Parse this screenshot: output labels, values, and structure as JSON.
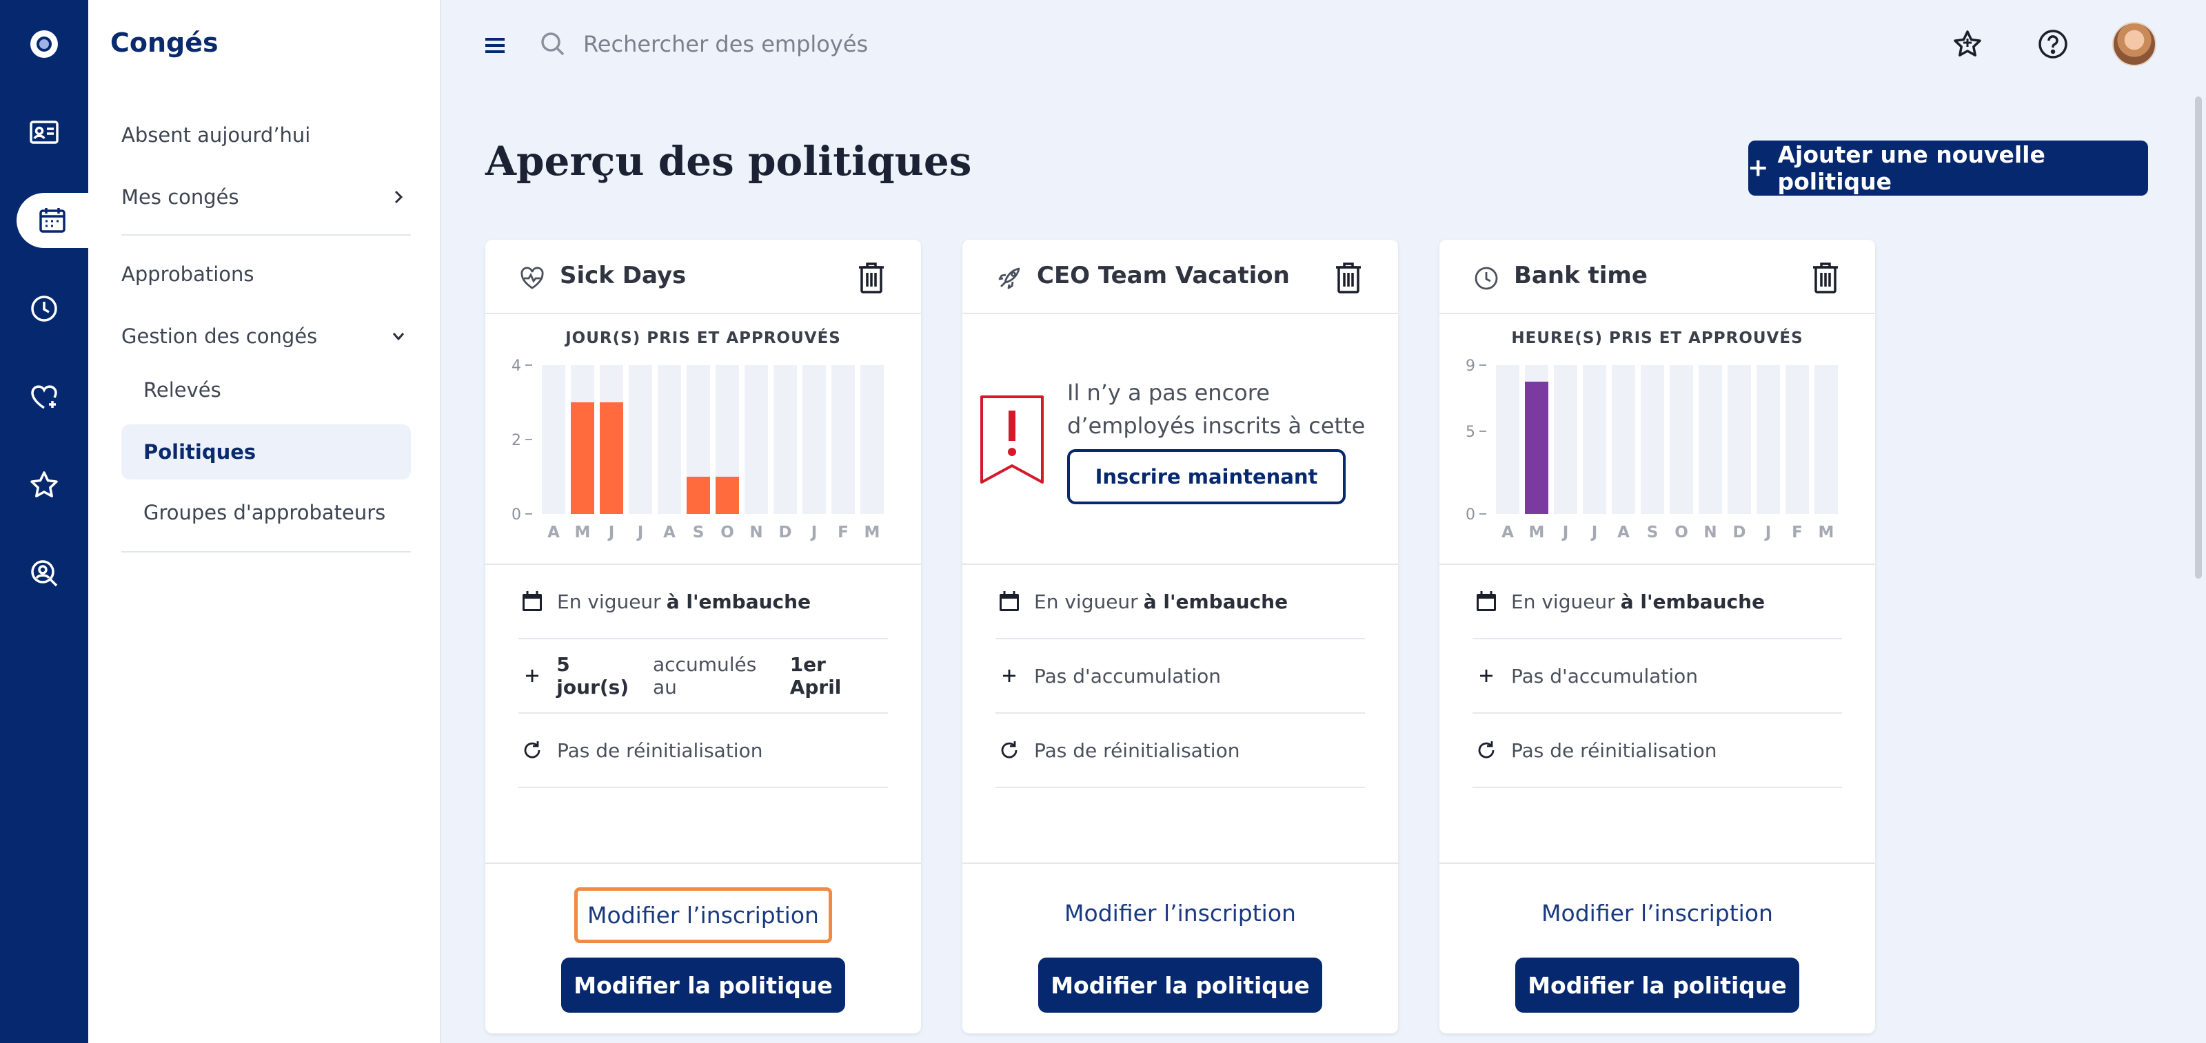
{
  "sidebar": {
    "title": "Congés",
    "items": [
      {
        "label": "Absent aujourd’hui"
      },
      {
        "label": "Mes congés"
      },
      {
        "label": "Approbations"
      },
      {
        "label": "Gestion des congés"
      }
    ],
    "subitems": [
      {
        "label": "Relevés"
      },
      {
        "label": "Politiques"
      },
      {
        "label": "Groupes d'approbateurs"
      }
    ]
  },
  "topbar": {
    "search_placeholder": "Rechercher des employés"
  },
  "page": {
    "title": "Aperçu des politiques",
    "add_button": "Ajouter une nouvelle politique"
  },
  "icons": {
    "brand": "circle-logo-icon",
    "rail": [
      "id-card-icon",
      "calendar-icon",
      "clock-icon",
      "heart-plus-icon",
      "star-icon",
      "search-person-icon"
    ],
    "topbar": [
      "menu-icon",
      "search-icon",
      "star-badge-icon",
      "help-icon"
    ]
  },
  "colors": {
    "primary": "#06286e",
    "sick_bar": "#ff6b3d",
    "bank_bar": "#7b3aa0",
    "empty_bar": "#eef1f8",
    "alert": "#d41a2a",
    "focus": "#f08a44"
  },
  "cards": [
    {
      "title": "Sick Days",
      "icon": "heart-pulse-icon",
      "rules": [
        {
          "pre": "En vigueur",
          "bold": "à l'embauche",
          "post": ""
        },
        {
          "pre": "",
          "bold": "5 jour(s)",
          "post": "accumulés au",
          "bold2": "1er April"
        },
        {
          "pre": "Pas de réinitialisation",
          "bold": "",
          "post": ""
        }
      ],
      "edit_enrollment": "Modifier l’inscription",
      "edit_policy": "Modifier la politique"
    },
    {
      "title": "CEO Team Vacation",
      "icon": "rocket-icon",
      "empty_message": "Il n’y a pas encore d’employés inscrits à cette politique.",
      "enroll_button": "Inscrire maintenant",
      "rules": [
        {
          "pre": "En vigueur",
          "bold": "à l'embauche",
          "post": ""
        },
        {
          "pre": "Pas d'accumulation",
          "bold": "",
          "post": ""
        },
        {
          "pre": "Pas de réinitialisation",
          "bold": "",
          "post": ""
        }
      ],
      "edit_enrollment": "Modifier l’inscription",
      "edit_policy": "Modifier la politique"
    },
    {
      "title": "Bank time",
      "icon": "clock-icon",
      "rules": [
        {
          "pre": "En vigueur",
          "bold": "à l'embauche",
          "post": ""
        },
        {
          "pre": "Pas d'accumulation",
          "bold": "",
          "post": ""
        },
        {
          "pre": "Pas de réinitialisation",
          "bold": "",
          "post": ""
        }
      ],
      "edit_enrollment": "Modifier l’inscription",
      "edit_policy": "Modifier la politique"
    }
  ],
  "chart_data": [
    {
      "type": "bar",
      "title": "JOUR(S) PRIS ET APPROUVÉS",
      "categories": [
        "A",
        "M",
        "J",
        "J",
        "A",
        "S",
        "O",
        "N",
        "D",
        "J",
        "F",
        "M"
      ],
      "values": [
        0,
        3,
        3,
        0,
        0,
        1,
        1,
        0,
        0,
        0,
        0,
        0
      ],
      "ylim": [
        0,
        4
      ],
      "yticks": [
        "4",
        "2",
        "0"
      ],
      "ytick_values": [
        4,
        2,
        0
      ]
    },
    {
      "type": "bar",
      "title": "HEURE(S) PRIS ET APPROUVÉS",
      "categories": [
        "A",
        "M",
        "J",
        "J",
        "A",
        "S",
        "O",
        "N",
        "D",
        "J",
        "F",
        "M"
      ],
      "values": [
        0,
        8,
        0,
        0,
        0,
        0,
        0,
        0,
        0,
        0,
        0,
        0
      ],
      "ylim": [
        0,
        9
      ],
      "yticks": [
        "9",
        "5",
        "0"
      ],
      "ytick_values": [
        9,
        5,
        0
      ]
    }
  ]
}
